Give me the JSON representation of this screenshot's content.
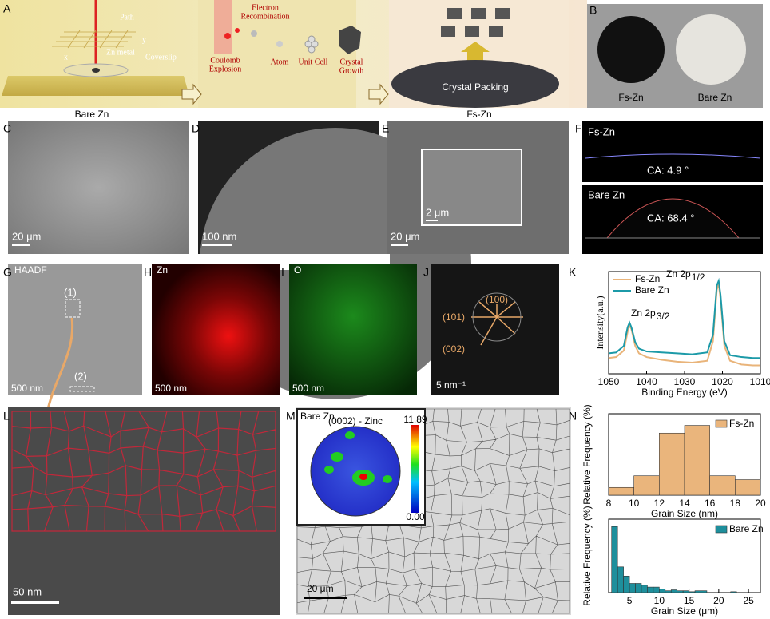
{
  "panel_labels": [
    "A",
    "B",
    "C",
    "D",
    "E",
    "F",
    "G",
    "H",
    "I",
    "J",
    "K",
    "L",
    "M",
    "N"
  ],
  "schematic": {
    "path": "Path",
    "axis_y": "y",
    "axis_x": "x",
    "zn_metal": "Zn metal",
    "coverslip": "Coverslip",
    "bare_zn": "Bare Zn",
    "electron": "Electron",
    "recombination": "Recombination",
    "coulomb": "Coulomb",
    "explosion": "Explosion",
    "atom": "Atom",
    "unit_cell": "Unit Cell",
    "crystal": "Crystal",
    "growth": "Growth",
    "crystal_packing": "Crystal Packing",
    "fs_zn": "Fs-Zn"
  },
  "photo": {
    "fs_zn": "Fs-Zn",
    "bare_zn": "Bare Zn"
  },
  "sem": {
    "c_scale": "20 μm",
    "d_scale": "100 nm",
    "e_scale": "20 μm",
    "e_inset_scale": "2 μm"
  },
  "contact_angle": {
    "fs_zn": "Fs-Zn",
    "fs_zn_ca": "CA:  4.9 °",
    "bare_zn": "Bare Zn",
    "bare_zn_ca": "CA:  68.4 °"
  },
  "eds": {
    "haadf": "HAADF",
    "region_1": "(1)",
    "region_2": "(2)",
    "g_scale": "500 nm",
    "zn": "Zn",
    "h_scale": "500 nm",
    "o": "O",
    "i_scale": "500 nm"
  },
  "saed": {
    "p100": "(100)",
    "p101": "(101)",
    "p002": "(002)",
    "scale": "5 nm⁻¹"
  },
  "tem": {
    "scale": "50 nm"
  },
  "ebsd": {
    "bare_zn": "Bare Zn",
    "pole_title": "(0002) - Zinc",
    "max": "11.89",
    "min": "0.00",
    "scale": "20 μm"
  },
  "chart_data": [
    {
      "type": "line",
      "x_label": "Binding Energy (eV)",
      "y_label": "Intensity(a.u.)",
      "x": [
        1050,
        1048,
        1046,
        1045,
        1044.5,
        1044,
        1043,
        1042,
        1040,
        1036,
        1032,
        1028,
        1024,
        1022.5,
        1021.5,
        1021,
        1020.5,
        1019.5,
        1018,
        1015,
        1012,
        1010
      ],
      "series": [
        {
          "name": "Fs-Zn",
          "color": "#e9b47a",
          "values": [
            0.17,
            0.18,
            0.25,
            0.45,
            0.52,
            0.48,
            0.3,
            0.22,
            0.18,
            0.15,
            0.13,
            0.12,
            0.14,
            0.35,
            0.9,
            0.97,
            0.8,
            0.3,
            0.14,
            0.1,
            0.09,
            0.09
          ]
        },
        {
          "name": "Bare Zn",
          "color": "#1c9aa8",
          "values": [
            0.22,
            0.23,
            0.3,
            0.5,
            0.55,
            0.5,
            0.34,
            0.27,
            0.24,
            0.23,
            0.22,
            0.21,
            0.23,
            0.42,
            0.95,
            1.0,
            0.85,
            0.35,
            0.2,
            0.18,
            0.17,
            0.17
          ]
        }
      ],
      "annotations": [
        {
          "text": "Zn 2p",
          "sub": "1/2"
        },
        {
          "text": "Zn 2p",
          "sub": "3/2"
        }
      ],
      "xlim": [
        1050,
        1010
      ],
      "xticks": [
        1050,
        1040,
        1030,
        1020,
        1010
      ],
      "ylim": [
        0,
        1.1
      ]
    },
    {
      "type": "histogram",
      "x_label": "Grain Size (nm)",
      "y_label": "Relative Frequency (%)",
      "bins": [
        8,
        10,
        12,
        14,
        16,
        18,
        20
      ],
      "series": [
        {
          "name": "Fs-Zn",
          "color": "#eab57c",
          "values": [
            0.04,
            0.1,
            0.32,
            0.36,
            0.1,
            0.08
          ]
        }
      ],
      "xlim": [
        8,
        20
      ],
      "xticks": [
        8,
        10,
        12,
        14,
        16,
        18,
        20
      ],
      "ylim": [
        0,
        0.42
      ]
    },
    {
      "type": "histogram",
      "x_label": "Grain Size (μm)",
      "y_label": "Relative Frequency (%)",
      "bins": [
        2,
        3,
        4,
        5,
        6,
        7,
        8,
        9,
        10,
        11,
        12,
        13,
        14,
        15,
        16,
        17,
        18,
        19,
        20,
        21,
        22,
        23,
        24
      ],
      "series": [
        {
          "name": "Bare Zn",
          "color": "#1e8f9c",
          "values": [
            0.36,
            0.14,
            0.09,
            0.05,
            0.05,
            0.04,
            0.03,
            0.03,
            0.02,
            0.01,
            0.015,
            0.01,
            0.01,
            0.005,
            0.01,
            0.01,
            0,
            0,
            0,
            0,
            0.005,
            0
          ]
        }
      ],
      "xlim": [
        1.5,
        27
      ],
      "xticks": [
        5,
        10,
        15,
        20,
        25
      ],
      "ylim": [
        0,
        0.4
      ]
    }
  ]
}
